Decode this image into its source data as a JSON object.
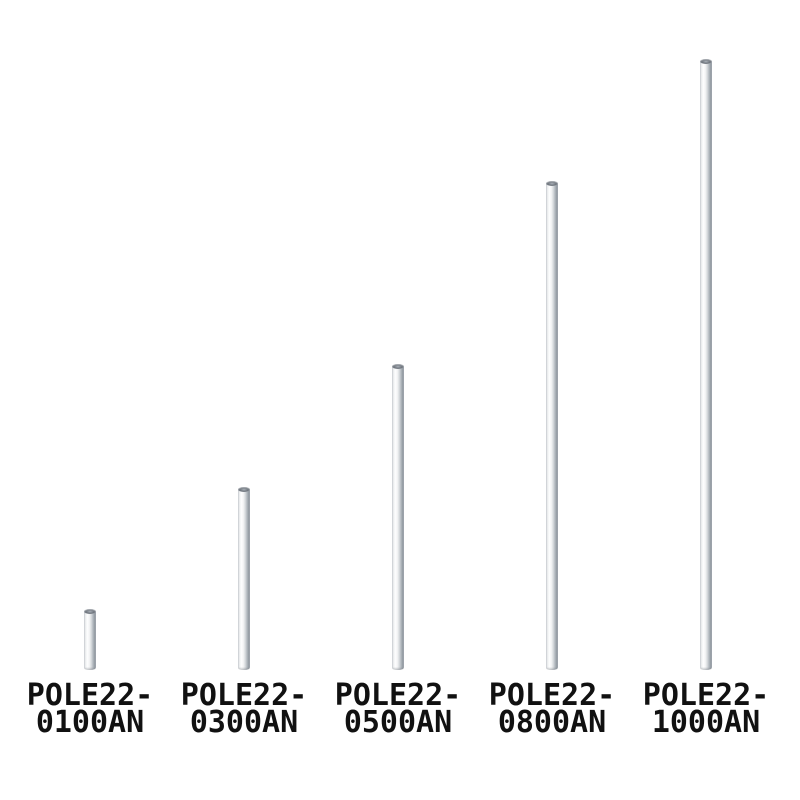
{
  "colors": {
    "background": "#ffffff",
    "label-text": "#111111"
  },
  "poles": [
    {
      "code_line1": "POLE22-",
      "code_line2": "0100AN",
      "length_mm": 100
    },
    {
      "code_line1": "POLE22-",
      "code_line2": "0300AN",
      "length_mm": 300
    },
    {
      "code_line1": "POLE22-",
      "code_line2": "0500AN",
      "length_mm": 500
    },
    {
      "code_line1": "POLE22-",
      "code_line2": "0800AN",
      "length_mm": 800
    },
    {
      "code_line1": "POLE22-",
      "code_line2": "1000AN",
      "length_mm": 1000
    }
  ]
}
